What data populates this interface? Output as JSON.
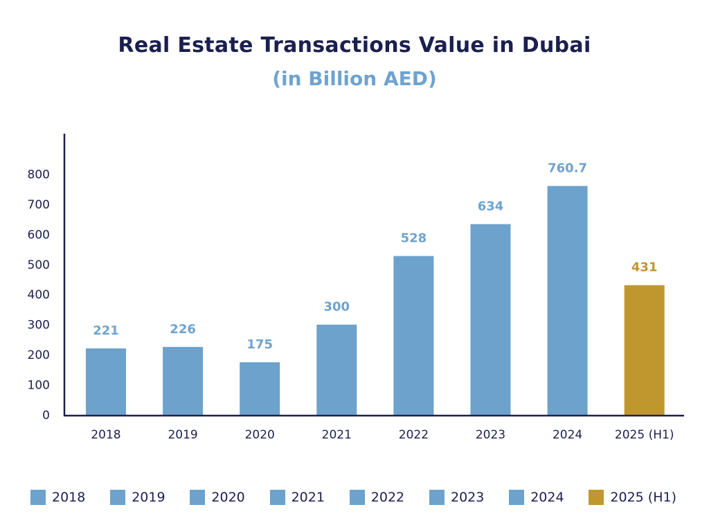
{
  "colors": {
    "bar": "#6ca2cc",
    "highlight": "#c0962f",
    "axis": "#1b1f4f",
    "text": "#1b1f4f",
    "subtitle": "#6fa3cf"
  },
  "chart_data": {
    "type": "bar",
    "title": "Real Estate Transactions Value in Dubai",
    "subtitle": "(in Billion AED)",
    "xlabel": "",
    "ylabel": "",
    "categories": [
      "2018",
      "2019",
      "2020",
      "2021",
      "2022",
      "2023",
      "2024",
      "2025 (H1)"
    ],
    "values": [
      221,
      226,
      175,
      300,
      528,
      634,
      760.7,
      431
    ],
    "data_labels": [
      "221",
      "226",
      "175",
      "300",
      "528",
      "634",
      "760.7",
      "431"
    ],
    "highlight_index": 7,
    "ylim": [
      0,
      900
    ],
    "yticks": [
      0,
      100,
      200,
      300,
      400,
      500,
      600,
      700,
      800
    ],
    "grid": false,
    "legend": {
      "placement": "bottom",
      "entries": [
        "2018",
        "2019",
        "2020",
        "2021",
        "2022",
        "2023",
        "2024",
        "2025 (H1)"
      ]
    }
  }
}
